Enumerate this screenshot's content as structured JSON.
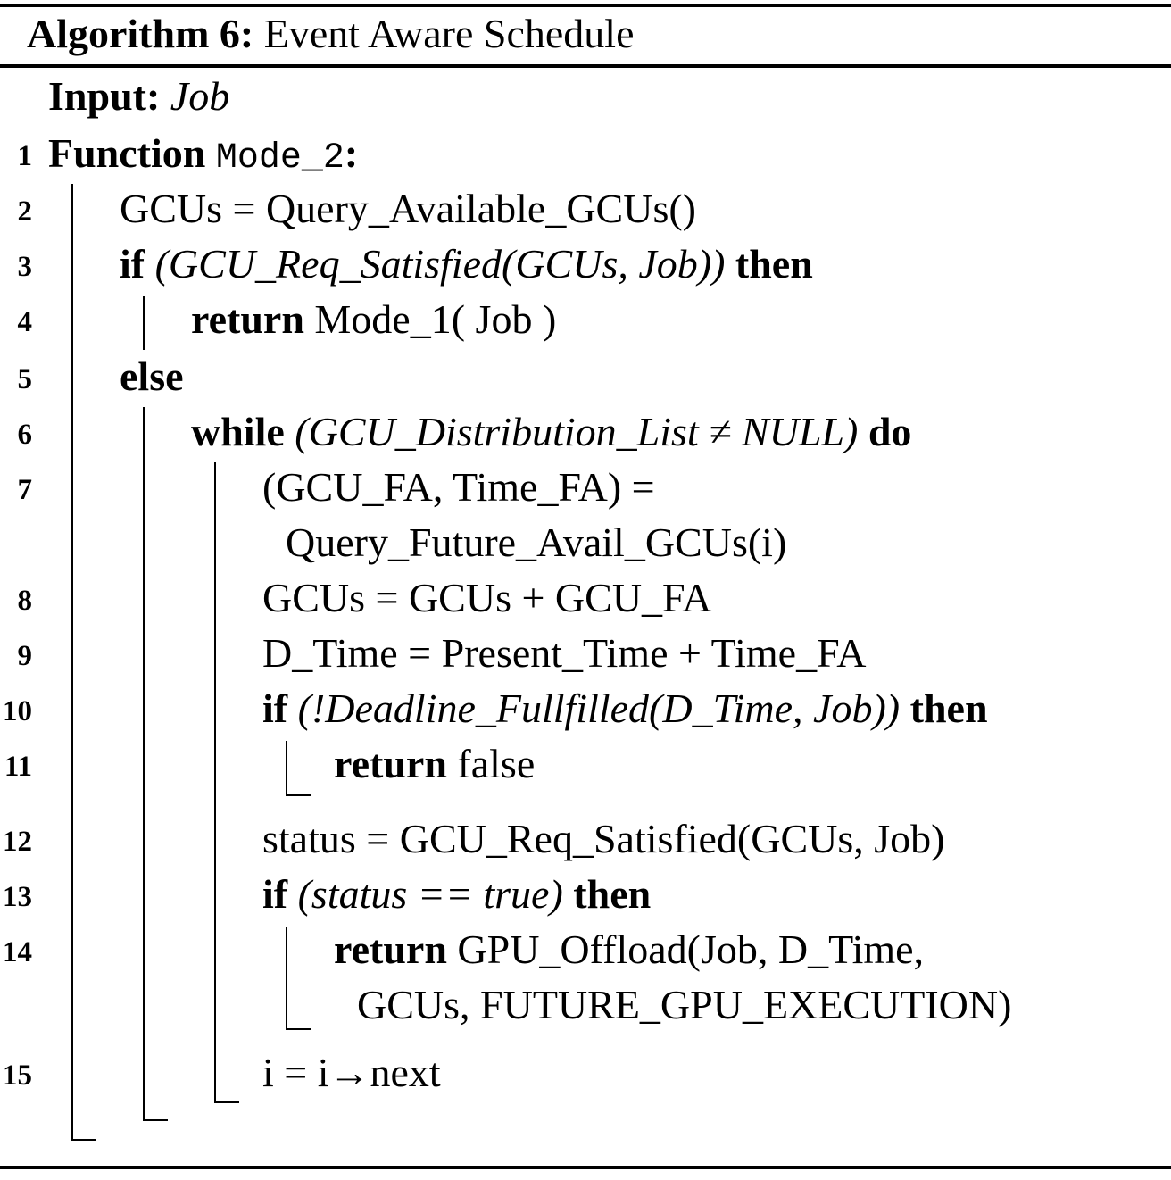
{
  "algorithm": {
    "label": "Algorithm 6:",
    "name": "Event Aware Schedule"
  },
  "input": {
    "label": "Input:",
    "value": "Job"
  },
  "lines": {
    "l1": {
      "num": "1",
      "kw": "Function",
      "name": "Mode_2",
      "tail": ":"
    },
    "l2": {
      "num": "2",
      "text": "GCUs = Query_Available_GCUs()"
    },
    "l3": {
      "num": "3",
      "kw": "if",
      "cond": "(GCU_Req_Satisfied(GCUs, Job))",
      "kw2": "then"
    },
    "l4": {
      "num": "4",
      "kw": "return",
      "text": "Mode_1( Job )"
    },
    "l5": {
      "num": "5",
      "kw": "else"
    },
    "l6": {
      "num": "6",
      "kw": "while",
      "cond": "(GCU_Distribution_List ≠ NULL)",
      "kw2": "do"
    },
    "l7": {
      "num": "7",
      "text": "(GCU_FA, Time_FA) =",
      "cont": "Query_Future_Avail_GCUs(i)"
    },
    "l8": {
      "num": "8",
      "text": "GCUs = GCUs + GCU_FA"
    },
    "l9": {
      "num": "9",
      "text": "D_Time = Present_Time + Time_FA"
    },
    "l10": {
      "num": "10",
      "kw": "if",
      "cond": "(!Deadline_Fullfilled(D_Time, Job))",
      "kw2": "then"
    },
    "l11": {
      "num": "11",
      "kw": "return",
      "text": "false"
    },
    "l12": {
      "num": "12",
      "text": "status = GCU_Req_Satisfied(GCUs, Job)"
    },
    "l13": {
      "num": "13",
      "kw": "if",
      "cond": "(status == true)",
      "kw2": "then"
    },
    "l14": {
      "num": "14",
      "kw": "return",
      "text": "GPU_Offload(Job, D_Time,",
      "cont": "GCUs, FUTURE_GPU_EXECUTION)"
    },
    "l15": {
      "num": "15",
      "text": "i = i→next"
    }
  }
}
